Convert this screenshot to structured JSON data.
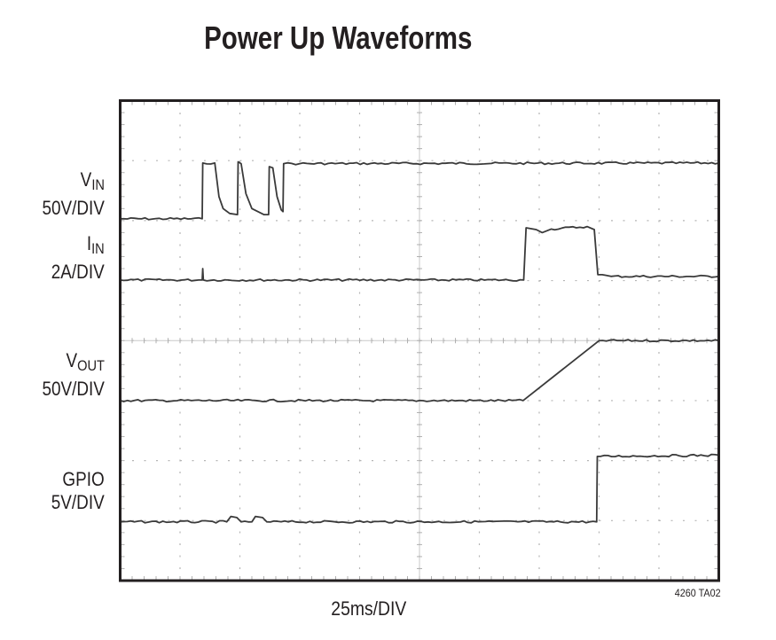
{
  "title": "Power Up Waveforms",
  "figure_id": "4260 TA02",
  "x_scale": "25ms/DIV",
  "channels": [
    {
      "name": "V",
      "sub": "IN",
      "scale": "50V/DIV"
    },
    {
      "name": "I",
      "sub": "IN",
      "scale": "2A/DIV"
    },
    {
      "name": "V",
      "sub": "OUT",
      "scale": "50V/DIV"
    },
    {
      "name": "GPIO",
      "sub": "",
      "scale": "5V/DIV"
    }
  ],
  "colors": {
    "trace": "#3a3a3a",
    "frame": "#231f20",
    "grid": "#b5b5b5",
    "text": "#231f20",
    "background": "#ffffff"
  },
  "chart_data": {
    "type": "line",
    "title": "Power Up Waveforms",
    "xlabel": "25ms/DIV",
    "ylabel": "",
    "grid": true,
    "divisions": {
      "x": 10,
      "y": 8
    },
    "x_units": "divisions (25ms/div)",
    "y_units": "divisions from top (0 = top, 8 = bottom)",
    "xlim": [
      0,
      10
    ],
    "ylim": [
      0,
      8
    ],
    "series": [
      {
        "name": "VIN 50V/DIV",
        "points": [
          [
            0,
            1.97
          ],
          [
            1.37,
            1.97
          ],
          [
            1.38,
            1.04
          ],
          [
            1.58,
            1.04
          ],
          [
            1.65,
            1.6
          ],
          [
            1.72,
            1.8
          ],
          [
            1.83,
            1.88
          ],
          [
            1.96,
            1.9
          ],
          [
            1.97,
            1.02
          ],
          [
            2.02,
            1.05
          ],
          [
            2.1,
            1.55
          ],
          [
            2.2,
            1.8
          ],
          [
            2.4,
            1.9
          ],
          [
            2.48,
            1.9
          ],
          [
            2.49,
            1.1
          ],
          [
            2.55,
            1.12
          ],
          [
            2.62,
            1.6
          ],
          [
            2.69,
            1.82
          ],
          [
            2.72,
            1.85
          ],
          [
            2.73,
            1.05
          ],
          [
            3.0,
            1.05
          ],
          [
            10,
            1.04
          ]
        ]
      },
      {
        "name": "IIN 2A/DIV",
        "points": [
          [
            0,
            2.99
          ],
          [
            1.37,
            2.99
          ],
          [
            1.38,
            2.8
          ],
          [
            1.39,
            2.99
          ],
          [
            6.74,
            2.99
          ],
          [
            6.78,
            2.12
          ],
          [
            6.95,
            2.15
          ],
          [
            7.05,
            2.2
          ],
          [
            7.2,
            2.14
          ],
          [
            7.8,
            2.1
          ],
          [
            7.92,
            2.15
          ],
          [
            7.98,
            2.9
          ],
          [
            8.2,
            2.93
          ],
          [
            10,
            2.93
          ]
        ]
      },
      {
        "name": "VOUT 50V/DIV",
        "points": [
          [
            0,
            5.0
          ],
          [
            6.73,
            5.0
          ],
          [
            8.0,
            4.0
          ],
          [
            10,
            4.0
          ]
        ]
      },
      {
        "name": "GPIO 5V/DIV",
        "points": [
          [
            0,
            7.02
          ],
          [
            1.78,
            7.02
          ],
          [
            1.85,
            6.93
          ],
          [
            1.95,
            6.95
          ],
          [
            2.02,
            7.02
          ],
          [
            2.2,
            7.02
          ],
          [
            2.26,
            6.93
          ],
          [
            2.38,
            6.95
          ],
          [
            2.45,
            7.02
          ],
          [
            7.96,
            7.02
          ],
          [
            7.97,
            5.93
          ],
          [
            10,
            5.91
          ]
        ]
      }
    ]
  }
}
